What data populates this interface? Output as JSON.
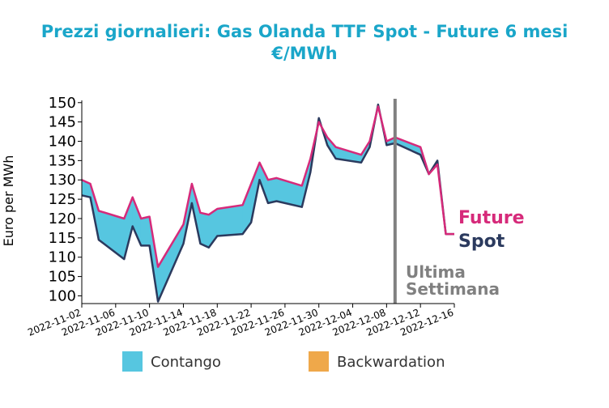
{
  "chart_data": {
    "type": "area",
    "title_lines": [
      "Prezzi giornalieri: Gas Olanda TTF Spot - Future 6 mesi",
      "€/MWh"
    ],
    "xlabel": "",
    "ylabel": "Euro per MWh",
    "ylim": [
      98,
      151
    ],
    "xlim": [
      "2022-11-02",
      "2022-12-16"
    ],
    "y_ticks": [
      100,
      105,
      110,
      115,
      120,
      125,
      130,
      135,
      140,
      145,
      150
    ],
    "x_ticks": [
      "2022-11-02",
      "2022-11-06",
      "2022-11-10",
      "2022-11-14",
      "2022-11-18",
      "2022-11-22",
      "2022-11-26",
      "2022-11-30",
      "2022-12-04",
      "2022-12-08",
      "2022-12-12",
      "2022-12-16"
    ],
    "grid": false,
    "x": [
      "2022-11-02",
      "2022-11-03",
      "2022-11-04",
      "2022-11-07",
      "2022-11-08",
      "2022-11-09",
      "2022-11-10",
      "2022-11-11",
      "2022-11-14",
      "2022-11-15",
      "2022-11-16",
      "2022-11-17",
      "2022-11-18",
      "2022-11-21",
      "2022-11-22",
      "2022-11-23",
      "2022-11-24",
      "2022-11-25",
      "2022-11-28",
      "2022-11-29",
      "2022-11-30",
      "2022-12-01",
      "2022-12-02",
      "2022-12-05",
      "2022-12-06",
      "2022-12-07",
      "2022-12-08",
      "2022-12-09",
      "2022-12-12",
      "2022-12-13",
      "2022-12-14",
      "2022-12-15",
      "2022-12-16"
    ],
    "series": [
      {
        "name": "Future",
        "color": "#d62a7a",
        "values": [
          130.0,
          129.0,
          122.0,
          120.0,
          125.5,
          120.0,
          120.5,
          107.5,
          118.5,
          129.0,
          121.5,
          121.0,
          122.5,
          123.5,
          129.0,
          134.5,
          130.0,
          130.5,
          128.5,
          135.5,
          145.0,
          141.0,
          138.5,
          136.5,
          140.0,
          149.0,
          140.0,
          141.0,
          138.5,
          131.5,
          134.0,
          116.0,
          116.0
        ]
      },
      {
        "name": "Spot",
        "color": "#2b3a5e",
        "values": [
          126.0,
          125.5,
          114.5,
          109.5,
          118.0,
          113.0,
          113.0,
          98.5,
          113.5,
          124.0,
          113.5,
          112.5,
          115.5,
          116.0,
          119.0,
          130.0,
          124.0,
          124.5,
          123.0,
          132.0,
          146.0,
          139.0,
          135.5,
          134.5,
          138.5,
          149.5,
          139.0,
          139.5,
          136.5,
          131.5,
          135.0,
          116.0,
          116.0
        ]
      }
    ],
    "fill_legend": [
      {
        "label": "Contango",
        "color": "#56c6e0"
      },
      {
        "label": "Backwardation",
        "color": "#efa84a"
      }
    ],
    "annotation": {
      "lines": [
        "Ultima",
        "Settimana"
      ],
      "at_x": "2022-12-09",
      "color": "#808080"
    },
    "legend_position": "bottom"
  }
}
